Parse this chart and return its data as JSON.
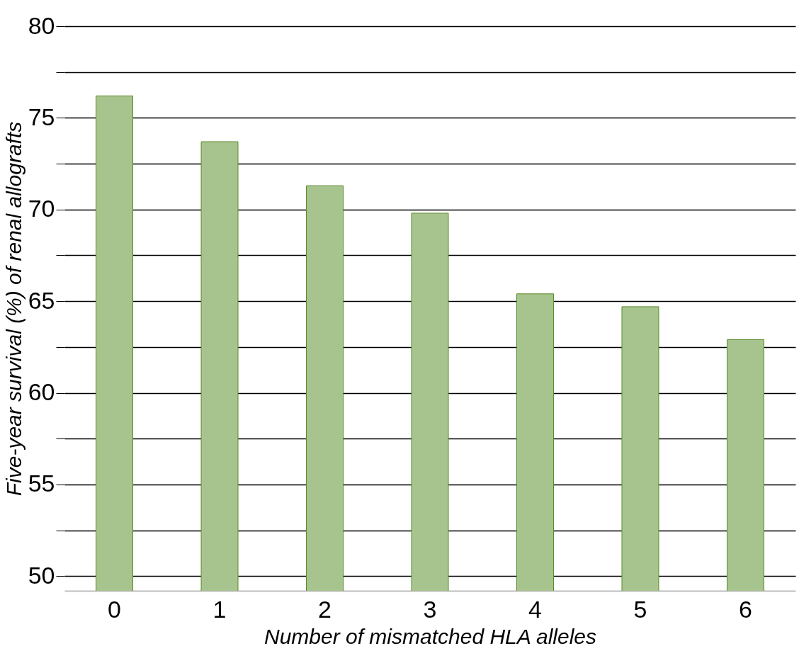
{
  "chart_data": {
    "type": "bar",
    "xlabel": "Number of mismatched HLA alleles",
    "ylabel": "Five-year survival (%) of renal allografts",
    "categories": [
      "0",
      "1",
      "2",
      "3",
      "4",
      "5",
      "6"
    ],
    "values": [
      76.2,
      73.7,
      71.3,
      69.8,
      65.4,
      64.7,
      62.9
    ],
    "color": "#a8c48e",
    "ylim": [
      49.2,
      80
    ],
    "yticks": [
      50,
      {
        "value": 52.5,
        "label": null
      },
      55,
      {
        "value": 57.5,
        "label": null
      },
      60,
      {
        "value": 62.5,
        "label": null
      },
      65,
      {
        "value": 67.5,
        "label": null
      },
      70,
      {
        "value": 72.5,
        "label": null
      },
      75,
      {
        "value": 77.5,
        "label": null
      },
      80
    ],
    "grid": "y"
  }
}
